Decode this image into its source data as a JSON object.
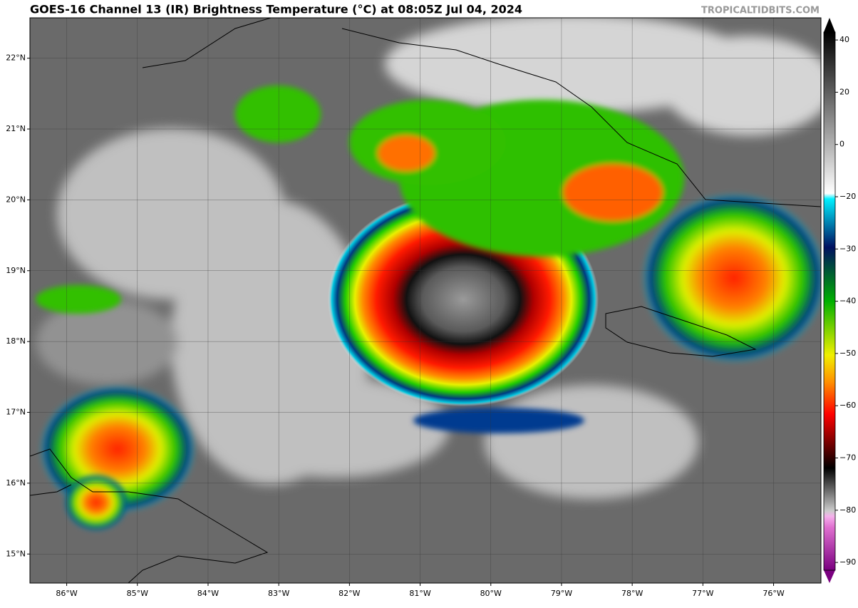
{
  "header": {
    "title": "GOES-16 Channel 13 (IR) Brightness Temperature (°C) at 08:05Z Jul 04, 2024",
    "credit": "TROPICALTIDBITS.COM"
  },
  "map": {
    "lon_range": [
      -86.52,
      -75.33
    ],
    "lat_range": [
      14.59,
      22.57
    ],
    "lon_ticks": [
      {
        "value": -86,
        "label": "86°W"
      },
      {
        "value": -85,
        "label": "85°W"
      },
      {
        "value": -84,
        "label": "84°W"
      },
      {
        "value": -83,
        "label": "83°W"
      },
      {
        "value": -82,
        "label": "82°W"
      },
      {
        "value": -81,
        "label": "81°W"
      },
      {
        "value": -80,
        "label": "80°W"
      },
      {
        "value": -79,
        "label": "79°W"
      },
      {
        "value": -78,
        "label": "78°W"
      },
      {
        "value": -77,
        "label": "77°W"
      },
      {
        "value": -76,
        "label": "76°W"
      }
    ],
    "lat_ticks": [
      {
        "value": 22,
        "label": "22°N"
      },
      {
        "value": 21,
        "label": "21°N"
      },
      {
        "value": 20,
        "label": "20°N"
      },
      {
        "value": 19,
        "label": "19°N"
      },
      {
        "value": 18,
        "label": "18°N"
      },
      {
        "value": 17,
        "label": "17°N"
      },
      {
        "value": 16,
        "label": "16°N"
      },
      {
        "value": 15,
        "label": "15°N"
      }
    ]
  },
  "colorbar": {
    "ticks": [
      {
        "value": 40,
        "label": "40"
      },
      {
        "value": 20,
        "label": "20"
      },
      {
        "value": 0,
        "label": "0"
      },
      {
        "value": -20,
        "label": "−20"
      },
      {
        "value": -30,
        "label": "−30"
      },
      {
        "value": -40,
        "label": "−40"
      },
      {
        "value": -50,
        "label": "−50"
      },
      {
        "value": -60,
        "label": "−60"
      },
      {
        "value": -70,
        "label": "−70"
      },
      {
        "value": -80,
        "label": "−80"
      },
      {
        "value": -90,
        "label": "−90"
      }
    ]
  }
}
